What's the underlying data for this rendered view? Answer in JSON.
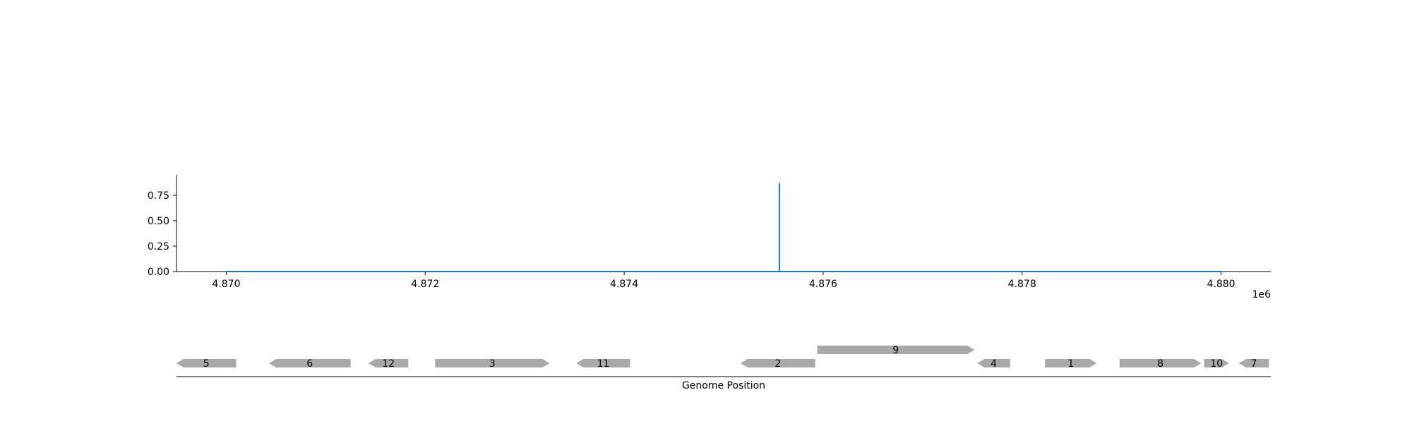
{
  "chart_data": [
    {
      "type": "line",
      "title": "",
      "xlabel": "",
      "ylabel": "",
      "x_offset_label": "1e6",
      "xlim": [
        4869500,
        4880500
      ],
      "ylim": [
        0.0,
        0.95
      ],
      "xticks": [
        4870000,
        4872000,
        4874000,
        4876000,
        4878000,
        4880000
      ],
      "xtick_labels": [
        "4.870",
        "4.872",
        "4.874",
        "4.876",
        "4.878",
        "4.880"
      ],
      "yticks": [
        0.0,
        0.25,
        0.5,
        0.75
      ],
      "ytick_labels": [
        "0.00",
        "0.25",
        "0.50",
        "0.75"
      ],
      "grid": false,
      "series": [
        {
          "color": "#1f77b4",
          "x": [
            4870000,
            4875560,
            4875560,
            4875560,
            4880000
          ],
          "y": [
            0.0,
            0.0,
            0.87,
            0.0,
            0.0
          ]
        }
      ]
    },
    {
      "type": "gene_map",
      "xlabel": "Genome Position",
      "xlim": [
        4869500,
        4880500
      ],
      "genes": [
        {
          "label": "5",
          "start": 4869500,
          "end": 4870100,
          "strand": "-",
          "row": 0
        },
        {
          "label": "6",
          "start": 4870430,
          "end": 4871250,
          "strand": "-",
          "row": 0
        },
        {
          "label": "12",
          "start": 4871430,
          "end": 4871830,
          "strand": "-",
          "row": 0
        },
        {
          "label": "3",
          "start": 4872100,
          "end": 4873250,
          "strand": "+",
          "row": 0
        },
        {
          "label": "11",
          "start": 4873520,
          "end": 4874060,
          "strand": "-",
          "row": 0
        },
        {
          "label": "2",
          "start": 4875170,
          "end": 4875920,
          "strand": "-",
          "row": 0
        },
        {
          "label": "9",
          "start": 4875940,
          "end": 4877520,
          "strand": "+",
          "row": 1
        },
        {
          "label": "4",
          "start": 4877550,
          "end": 4877880,
          "strand": "-",
          "row": 0
        },
        {
          "label": "1",
          "start": 4878230,
          "end": 4878750,
          "strand": "+",
          "row": 0
        },
        {
          "label": "8",
          "start": 4878980,
          "end": 4879800,
          "strand": "+",
          "row": 0
        },
        {
          "label": "10",
          "start": 4879830,
          "end": 4880080,
          "strand": "+",
          "row": 0
        },
        {
          "label": "7",
          "start": 4880180,
          "end": 4880480,
          "strand": "-",
          "row": 0
        }
      ],
      "gene_color": "#a9a9a9"
    }
  ]
}
